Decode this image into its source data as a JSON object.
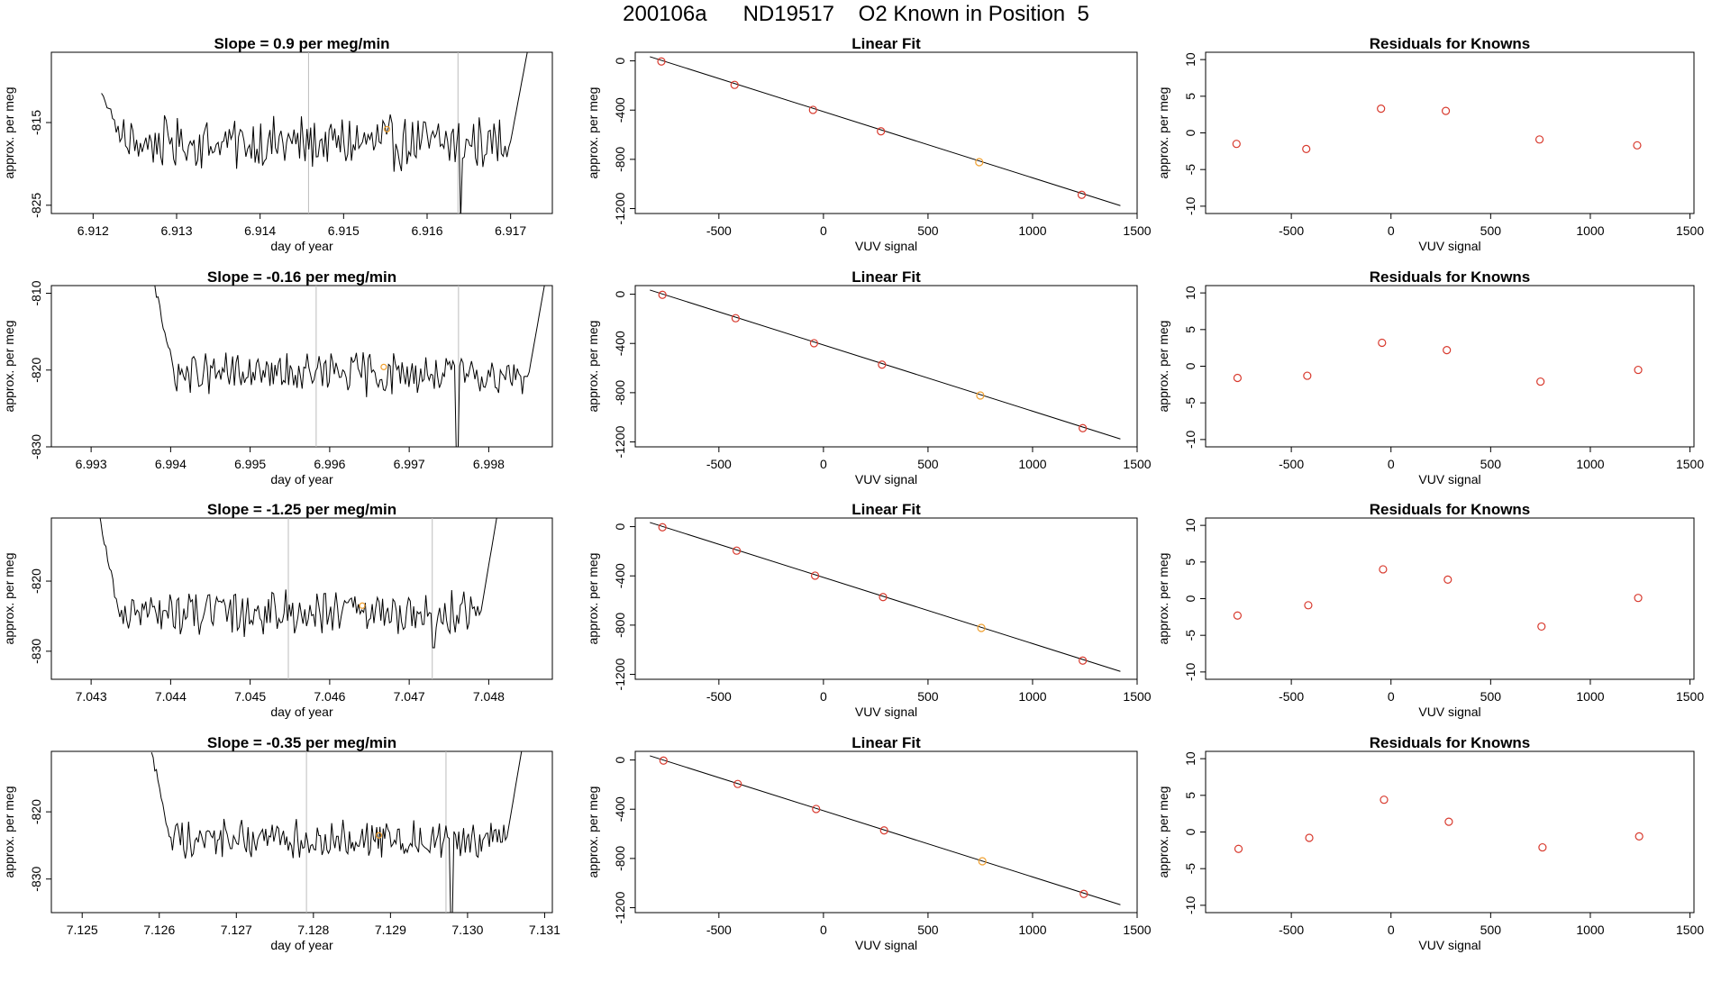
{
  "page_title": "200106a      ND19517    O2 Known in Position  5",
  "colors": {
    "trace": "#000000",
    "known_point": "#d83a2e",
    "highlight_point": "#f0a030",
    "frame": "#000000",
    "marker_line": "#bdbdbd"
  },
  "chart_data": [
    {
      "type": "line",
      "row": 1,
      "panel": "time-series",
      "title": "Slope =  0.9  per meg/min",
      "xlabel": "day of year",
      "ylabel": "approx. per meg",
      "xlim": [
        6.9115,
        6.9175
      ],
      "ylim": [
        -826,
        -806.5
      ],
      "xticks": [
        6.912,
        6.913,
        6.914,
        6.915,
        6.916,
        6.917
      ],
      "xtick_labels": [
        "6.912",
        "6.913",
        "6.914",
        "6.915",
        "6.916",
        "6.917"
      ],
      "yticks": [
        -825,
        -815
      ],
      "ytick_labels": [
        "-825",
        "-815"
      ],
      "data_start": 6.9121,
      "data_end": 6.9172,
      "level_start": -811,
      "level_end": -806.5,
      "baseline": -817.5,
      "noise": 2.6,
      "dip_at": 6.9164,
      "dip_value": -827,
      "marker_lines": [
        6.91458,
        6.91637
      ],
      "highlight_point": {
        "x": 6.91552,
        "y": -815.8
      }
    },
    {
      "type": "scatter",
      "row": 1,
      "panel": "linear-fit",
      "title": "Linear Fit",
      "xlabel": "VUV signal",
      "ylabel": "approx. per meg",
      "xlim": [
        -900,
        1500
      ],
      "ylim": [
        -1240,
        70
      ],
      "xticks": [
        -500,
        0,
        500,
        1000,
        1500
      ],
      "xtick_labels": [
        "-500",
        "0",
        "500",
        "1000",
        "1500"
      ],
      "yticks": [
        0,
        -400,
        -800,
        -1200
      ],
      "ytick_labels": [
        "0",
        "-400",
        "-800",
        "-1200"
      ],
      "fit_line": {
        "x": [
          -830,
          1420
        ],
        "y": [
          34,
          -1176
        ]
      },
      "x": [
        -775,
        -425,
        -50,
        275,
        745,
        1235
      ],
      "y": [
        -5,
        -195,
        -398,
        -572,
        -823,
        -1088
      ],
      "highlight_index": 4
    },
    {
      "type": "scatter",
      "row": 1,
      "panel": "residuals",
      "title": "Residuals for Knowns",
      "xlabel": "VUV signal",
      "ylabel": "approx. per meg",
      "xlim": [
        -930,
        1520
      ],
      "ylim": [
        -11,
        11
      ],
      "xticks": [
        -500,
        0,
        500,
        1000,
        1500
      ],
      "xtick_labels": [
        "-500",
        "0",
        "500",
        "1000",
        "1500"
      ],
      "yticks": [
        10,
        5,
        0,
        -5,
        -10
      ],
      "ytick_labels": [
        "10",
        "5",
        "0",
        "-5",
        "-10"
      ],
      "x": [
        -775,
        -425,
        -50,
        275,
        745,
        1235
      ],
      "y": [
        -1.5,
        -2.2,
        3.3,
        3.0,
        -0.9,
        -1.7
      ]
    },
    {
      "type": "line",
      "row": 2,
      "panel": "time-series",
      "title": "Slope =  -0.16  per meg/min",
      "xlabel": "day of year",
      "ylabel": "approx. per meg",
      "xlim": [
        6.9925,
        6.9988
      ],
      "ylim": [
        -830,
        -809
      ],
      "xticks": [
        6.993,
        6.994,
        6.995,
        6.996,
        6.997,
        6.998
      ],
      "xtick_labels": [
        "6.993",
        "6.994",
        "6.995",
        "6.996",
        "6.997",
        "6.998"
      ],
      "yticks": [
        -810,
        -820,
        -830
      ],
      "ytick_labels": [
        "-810",
        "-820",
        "-830"
      ],
      "data_start": 6.9938,
      "data_end": 6.9987,
      "level_start": -809,
      "level_end": -809,
      "baseline": -820.5,
      "noise": 2.3,
      "dip_at": 6.9976,
      "dip_value": -831,
      "marker_lines": [
        6.99583,
        6.99762
      ],
      "highlight_point": {
        "x": 6.99668,
        "y": -819.6
      }
    },
    {
      "type": "scatter",
      "row": 2,
      "panel": "linear-fit",
      "title": "Linear Fit",
      "xlabel": "VUV signal",
      "ylabel": "approx. per meg",
      "xlim": [
        -900,
        1500
      ],
      "ylim": [
        -1240,
        70
      ],
      "xticks": [
        -500,
        0,
        500,
        1000,
        1500
      ],
      "xtick_labels": [
        "-500",
        "0",
        "500",
        "1000",
        "1500"
      ],
      "yticks": [
        0,
        -400,
        -800,
        -1200
      ],
      "ytick_labels": [
        "0",
        "-400",
        "-800",
        "-1200"
      ],
      "fit_line": {
        "x": [
          -830,
          1420
        ],
        "y": [
          34,
          -1176
        ]
      },
      "x": [
        -770,
        -420,
        -45,
        280,
        750,
        1240
      ],
      "y": [
        -5,
        -195,
        -398,
        -572,
        -823,
        -1088
      ],
      "highlight_index": 4
    },
    {
      "type": "scatter",
      "row": 2,
      "panel": "residuals",
      "title": "Residuals for Knowns",
      "xlabel": "VUV signal",
      "ylabel": "approx. per meg",
      "xlim": [
        -930,
        1520
      ],
      "ylim": [
        -11,
        11
      ],
      "xticks": [
        -500,
        0,
        500,
        1000,
        1500
      ],
      "xtick_labels": [
        "-500",
        "0",
        "500",
        "1000",
        "1500"
      ],
      "yticks": [
        10,
        5,
        0,
        -5,
        -10
      ],
      "ytick_labels": [
        "10",
        "5",
        "0",
        "-5",
        "-10"
      ],
      "x": [
        -770,
        -420,
        -45,
        280,
        750,
        1240
      ],
      "y": [
        -1.6,
        -1.3,
        3.2,
        2.2,
        -2.1,
        -0.5
      ]
    },
    {
      "type": "line",
      "row": 3,
      "panel": "time-series",
      "title": "Slope =  -1.25  per meg/min",
      "xlabel": "day of year",
      "ylabel": "approx. per meg",
      "xlim": [
        7.0425,
        7.0488
      ],
      "ylim": [
        -834,
        -811
      ],
      "xticks": [
        7.043,
        7.044,
        7.045,
        7.046,
        7.047,
        7.048
      ],
      "xtick_labels": [
        "7.043",
        "7.044",
        "7.045",
        "7.046",
        "7.047",
        "7.048"
      ],
      "yticks": [
        -820,
        -830
      ],
      "ytick_labels": [
        "-820",
        "-830"
      ],
      "data_start": 7.0431,
      "data_end": 7.0481,
      "level_start": -811,
      "level_end": -811,
      "baseline": -824.5,
      "noise": 2.6,
      "dip_at": 7.0473,
      "dip_value": -829.5,
      "marker_lines": [
        7.04548,
        7.04729
      ],
      "highlight_point": {
        "x": 7.04641,
        "y": -823.5
      }
    },
    {
      "type": "scatter",
      "row": 3,
      "panel": "linear-fit",
      "title": "Linear Fit",
      "xlabel": "VUV signal",
      "ylabel": "approx. per meg",
      "xlim": [
        -900,
        1500
      ],
      "ylim": [
        -1240,
        70
      ],
      "xticks": [
        -500,
        0,
        500,
        1000,
        1500
      ],
      "xtick_labels": [
        "-500",
        "0",
        "500",
        "1000",
        "1500"
      ],
      "yticks": [
        0,
        -400,
        -800,
        -1200
      ],
      "ytick_labels": [
        "0",
        "-400",
        "-800",
        "-1200"
      ],
      "fit_line": {
        "x": [
          -830,
          1420
        ],
        "y": [
          34,
          -1176
        ]
      },
      "x": [
        -770,
        -415,
        -40,
        285,
        755,
        1240
      ],
      "y": [
        -5,
        -195,
        -398,
        -572,
        -823,
        -1088
      ],
      "highlight_index": 4
    },
    {
      "type": "scatter",
      "row": 3,
      "panel": "residuals",
      "title": "Residuals for Knowns",
      "xlabel": "VUV signal",
      "ylabel": "approx. per meg",
      "xlim": [
        -930,
        1520
      ],
      "ylim": [
        -11,
        11
      ],
      "xticks": [
        -500,
        0,
        500,
        1000,
        1500
      ],
      "xtick_labels": [
        "-500",
        "0",
        "500",
        "1000",
        "1500"
      ],
      "yticks": [
        10,
        5,
        0,
        -5,
        -10
      ],
      "ytick_labels": [
        "10",
        "5",
        "0",
        "-5",
        "-10"
      ],
      "x": [
        -770,
        -415,
        -40,
        285,
        755,
        1240
      ],
      "y": [
        -2.3,
        -0.9,
        4.0,
        2.6,
        -3.8,
        0.1
      ]
    },
    {
      "type": "line",
      "row": 4,
      "panel": "time-series",
      "title": "Slope =  -0.35  per meg/min",
      "xlabel": "day of year",
      "ylabel": "approx. per meg",
      "xlim": [
        7.1246,
        7.1311
      ],
      "ylim": [
        -835,
        -811
      ],
      "xticks": [
        7.125,
        7.126,
        7.127,
        7.128,
        7.129,
        7.13,
        7.131
      ],
      "xtick_labels": [
        "7.125",
        "7.126",
        "7.127",
        "7.128",
        "7.129",
        "7.130",
        "7.131"
      ],
      "yticks": [
        -820,
        -830
      ],
      "ytick_labels": [
        "-820",
        "-830"
      ],
      "data_start": 7.1259,
      "data_end": 7.1307,
      "level_start": -811,
      "level_end": -811,
      "baseline": -824,
      "noise": 2.4,
      "dip_at": 7.1298,
      "dip_value": -836,
      "marker_lines": [
        7.12791,
        7.12972
      ],
      "highlight_point": {
        "x": 7.12885,
        "y": -823.5
      }
    },
    {
      "type": "scatter",
      "row": 4,
      "panel": "linear-fit",
      "title": "Linear Fit",
      "xlabel": "VUV signal",
      "ylabel": "approx. per meg",
      "xlim": [
        -900,
        1500
      ],
      "ylim": [
        -1240,
        70
      ],
      "xticks": [
        -500,
        0,
        500,
        1000,
        1500
      ],
      "xtick_labels": [
        "-500",
        "0",
        "500",
        "1000",
        "1500"
      ],
      "yticks": [
        0,
        -400,
        -800,
        -1200
      ],
      "ytick_labels": [
        "0",
        "-400",
        "-800",
        "-1200"
      ],
      "fit_line": {
        "x": [
          -830,
          1420
        ],
        "y": [
          34,
          -1176
        ]
      },
      "x": [
        -765,
        -410,
        -35,
        290,
        760,
        1245
      ],
      "y": [
        -5,
        -195,
        -398,
        -572,
        -823,
        -1088
      ],
      "highlight_index": 4
    },
    {
      "type": "scatter",
      "row": 4,
      "panel": "residuals",
      "title": "Residuals for Knowns",
      "xlabel": "VUV signal",
      "ylabel": "approx. per meg",
      "xlim": [
        -930,
        1520
      ],
      "ylim": [
        -11,
        11
      ],
      "xticks": [
        -500,
        0,
        500,
        1000,
        1500
      ],
      "xtick_labels": [
        "-500",
        "0",
        "500",
        "1000",
        "1500"
      ],
      "yticks": [
        10,
        5,
        0,
        -5,
        -10
      ],
      "ytick_labels": [
        "10",
        "5",
        "0",
        "-5",
        "-10"
      ],
      "x": [
        -765,
        -410,
        -35,
        290,
        760,
        1245
      ],
      "y": [
        -2.3,
        -0.8,
        4.4,
        1.4,
        -2.1,
        -0.6
      ]
    }
  ]
}
